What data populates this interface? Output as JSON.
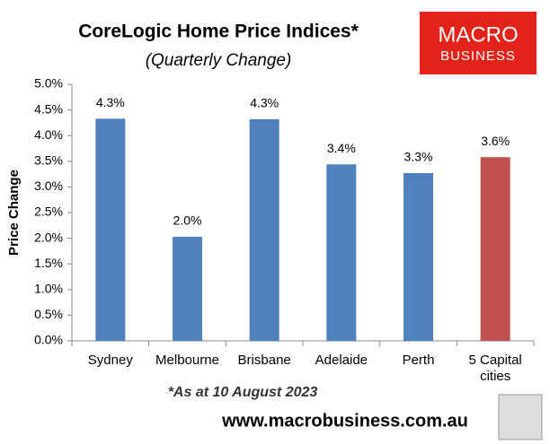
{
  "chart_data": {
    "type": "bar",
    "title": "CoreLogic Home Price Indices*",
    "subtitle": "(Quarterly Change)",
    "y_label": "Price Change",
    "categories": [
      "Sydney",
      "Melbourne",
      "Brisbane",
      "Adelaide",
      "Perth",
      "5 Capital cities"
    ],
    "values": [
      4.33,
      2.03,
      4.32,
      3.44,
      3.27,
      3.58
    ],
    "value_labels": [
      "4.3%",
      "2.0%",
      "4.3%",
      "3.4%",
      "3.3%",
      "3.6%"
    ],
    "colors": [
      "#4f81bd",
      "#4f81bd",
      "#4f81bd",
      "#4f81bd",
      "#4f81bd",
      "#c0504d"
    ],
    "ylim": [
      0,
      5
    ],
    "yticks": [
      {
        "value": 0,
        "label": "0.0%"
      },
      {
        "value": 0.5,
        "label": "0.5%"
      },
      {
        "value": 1,
        "label": "1.0%"
      },
      {
        "value": 1.5,
        "label": "1.5%"
      },
      {
        "value": 2,
        "label": "2.0%"
      },
      {
        "value": 2.5,
        "label": "2.5%"
      },
      {
        "value": 3,
        "label": "3.0%"
      },
      {
        "value": 3.5,
        "label": "3.5%"
      },
      {
        "value": 4,
        "label": "4.0%"
      },
      {
        "value": 4.5,
        "label": "4.5%"
      },
      {
        "value": 5,
        "label": "5.0%"
      }
    ],
    "grid": false,
    "footnote": "*As at 10 August 2023",
    "source": "www.macrobusiness.com.au"
  },
  "logo": {
    "line1": "MACRO",
    "line2": "BUSINESS"
  }
}
